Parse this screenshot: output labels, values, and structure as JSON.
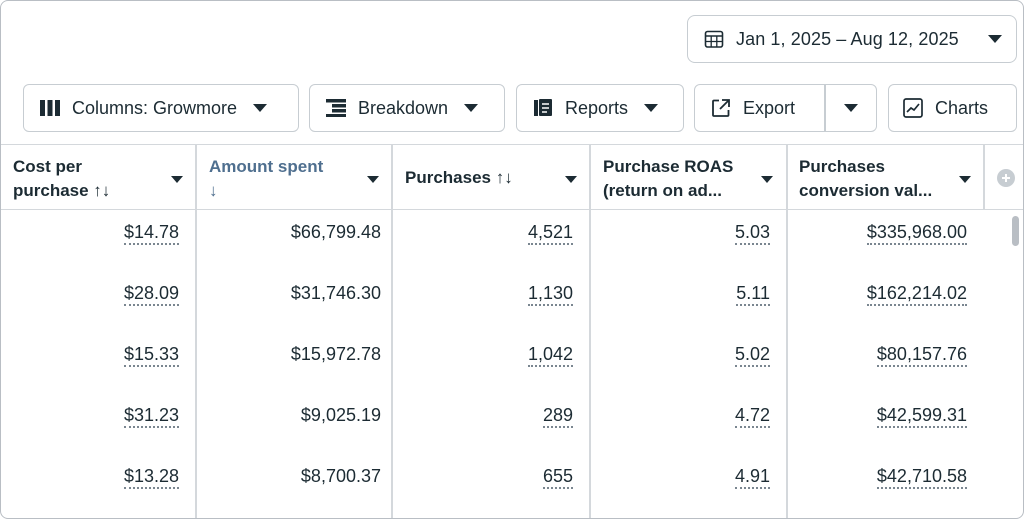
{
  "date_range": {
    "label": "Jan 1, 2025 – Aug 12, 2025"
  },
  "toolbar": {
    "columns_label": "Columns: Growmore",
    "breakdown_label": "Breakdown",
    "reports_label": "Reports",
    "export_label": "Export",
    "charts_label": "Charts"
  },
  "table": {
    "headers": [
      {
        "line1": "Cost per",
        "line2": "purchase ↑↓"
      },
      {
        "line1": "Amount spent",
        "line2": "↓"
      },
      {
        "line1": "Purchases ↑↓",
        "line2": ""
      },
      {
        "line1": "Purchase ROAS",
        "line2": "(return on ad..."
      },
      {
        "line1": "Purchases",
        "line2": "conversion val..."
      }
    ],
    "rows": [
      [
        "$14.78",
        "$66,799.48",
        "4,521",
        "5.03",
        "$335,968.00"
      ],
      [
        "$28.09",
        "$31,746.30",
        "1,130",
        "5.11",
        "$162,214.02"
      ],
      [
        "$15.33",
        "$15,972.78",
        "1,042",
        "5.02",
        "$80,157.76"
      ],
      [
        "$31.23",
        "$9,025.19",
        "289",
        "4.72",
        "$42,599.31"
      ],
      [
        "$13.28",
        "$8,700.37",
        "655",
        "4.91",
        "$42,710.58"
      ]
    ]
  },
  "icons": {
    "calendar": "calendar-icon",
    "columns": "columns-icon",
    "breakdown": "breakdown-icon",
    "reports": "reports-icon",
    "export": "export-icon",
    "charts": "charts-icon",
    "add_column": "add-column-icon"
  },
  "colors": {
    "sorted_header": "#4f6f8f",
    "border": "#c7cdd2",
    "text": "#1c2b33"
  }
}
